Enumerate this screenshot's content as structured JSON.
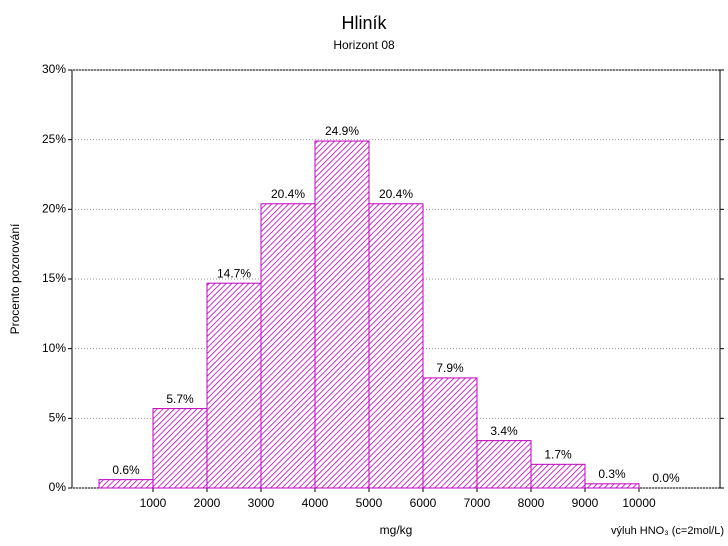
{
  "chart_data": {
    "type": "histogram",
    "title": "Hliník",
    "subtitle": "Horizont 08",
    "x_label": "mg/kg",
    "y_label": "Procento pozorování",
    "annotation": "výluh HNO₃ (c=2mol/L)",
    "bins": [
      0,
      1000,
      2000,
      3000,
      4000,
      5000,
      6000,
      7000,
      8000,
      9000,
      10000,
      11000
    ],
    "values": [
      0.6,
      5.7,
      14.7,
      20.4,
      24.9,
      20.4,
      7.9,
      3.4,
      1.7,
      0.3,
      0.0
    ],
    "value_labels": [
      "0.6%",
      "5.7%",
      "14.7%",
      "20.4%",
      "24.9%",
      "20.4%",
      "7.9%",
      "3.4%",
      "1.7%",
      "0.3%",
      "0.0%"
    ],
    "color": "#c000c0",
    "xlim": [
      -500,
      11500
    ],
    "xticks": [
      1000,
      2000,
      3000,
      4000,
      5000,
      6000,
      7000,
      8000,
      9000,
      10000
    ],
    "ylim": [
      0,
      30
    ],
    "yticks": [
      {
        "value": 0,
        "label": "0%"
      },
      {
        "value": 5,
        "label": "5%"
      },
      {
        "value": 10,
        "label": "10%"
      },
      {
        "value": 15,
        "label": "15%"
      },
      {
        "value": 20,
        "label": "20%"
      },
      {
        "value": 25,
        "label": "25%"
      },
      {
        "value": 30,
        "label": "30%"
      }
    ],
    "grid": true
  }
}
